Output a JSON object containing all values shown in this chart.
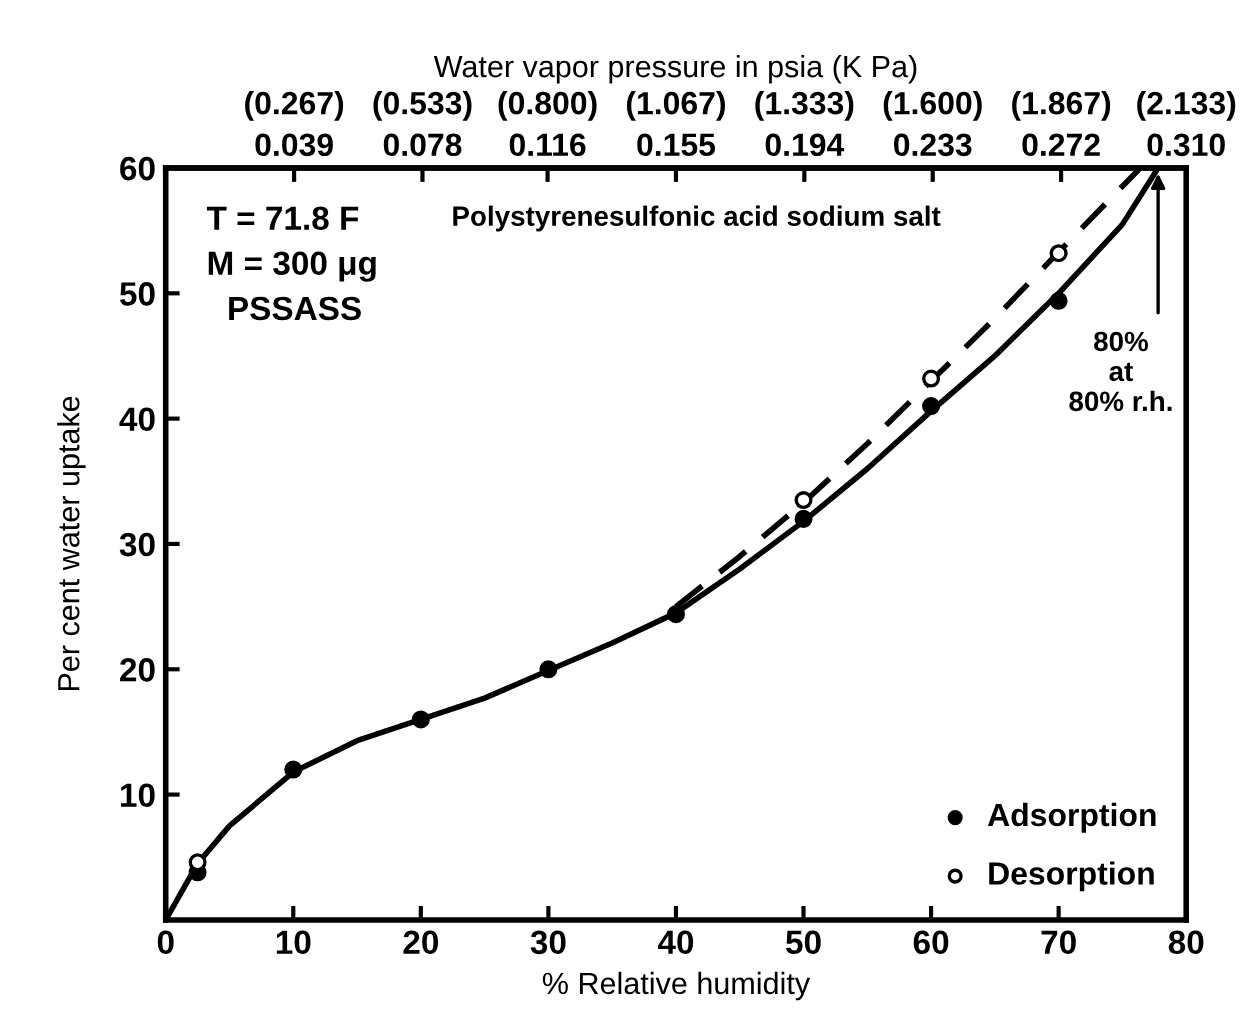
{
  "chart_data": {
    "type": "scatter",
    "xlabel": "% Relative humidity",
    "ylabel": "Per cent water uptake",
    "x2label": "Water vapor pressure in psia (K Pa)",
    "xlim": [
      0,
      80
    ],
    "xticks": [
      0,
      10,
      20,
      30,
      40,
      50,
      60,
      70,
      80
    ],
    "ylim": [
      0,
      60
    ],
    "yticks": [
      10,
      20,
      30,
      40,
      50,
      60
    ],
    "x2lim": [
      0,
      0.31
    ],
    "x2ticks": [
      0.039,
      0.078,
      0.116,
      0.155,
      0.194,
      0.233,
      0.272,
      {
        "value": 0.31,
        "label": "0.310"
      }
    ],
    "series": [
      {
        "type": "line",
        "color": "#000000",
        "line_style": "solid",
        "marker": "none",
        "x": [
          0,
          2.5,
          5,
          10,
          15,
          20,
          25,
          30,
          35,
          40,
          45,
          50,
          55,
          60,
          65,
          70,
          75,
          77.8
        ],
        "values": [
          0,
          4.5,
          7.5,
          11.8,
          14.3,
          16,
          17.7,
          19.9,
          22.1,
          24.5,
          28,
          31.8,
          36,
          40.6,
          45,
          50,
          55.5,
          60
        ]
      },
      {
        "type": "line",
        "color": "#000000",
        "line_style": "dashed",
        "marker": "none",
        "x": [
          40,
          45,
          50,
          55,
          60,
          65,
          70,
          76.4
        ],
        "values": [
          25,
          29,
          33.3,
          38,
          43,
          48,
          53.3,
          60
        ]
      },
      {
        "name": "Adsorption",
        "color": "#000000",
        "marker": "circle",
        "x": [
          2.5,
          10,
          20,
          30,
          40,
          50,
          60,
          70
        ],
        "values": [
          3.8,
          12,
          16,
          20,
          24.4,
          32,
          41,
          49.4
        ]
      },
      {
        "name": "Desorption",
        "color": "#ffffff",
        "marker": "circle",
        "x": [
          2.5,
          50,
          60,
          70
        ],
        "values": [
          4.6,
          33.5,
          43.2,
          53.2
        ]
      }
    ],
    "legend": "bottom right",
    "grid": false,
    "annotations": [
      "T = 71.8 F",
      "M = 300 μg",
      "PSSASS",
      "Polystyrenesulfonic acid sodium salt",
      {
        "text": "80%\nat\n80% r.h.",
        "x": 77.8,
        "y": 60
      },
      "(0.267)",
      "(0.533)",
      "(0.800)",
      "(1.067)",
      "(1.333)",
      "(1.600)",
      "(1.867)",
      "(2.133)"
    ]
  }
}
